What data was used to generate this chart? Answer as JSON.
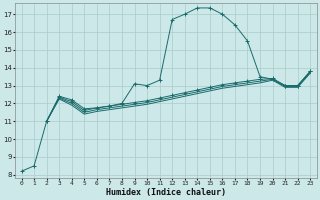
{
  "xlabel": "Humidex (Indice chaleur)",
  "bg_color": "#cce8e8",
  "grid_color": "#aacccc",
  "line_color": "#1a6b6b",
  "xlim": [
    -0.5,
    23.5
  ],
  "ylim": [
    7.8,
    17.6
  ],
  "yticks": [
    8,
    9,
    10,
    11,
    12,
    13,
    14,
    15,
    16,
    17
  ],
  "xticks": [
    0,
    1,
    2,
    3,
    4,
    5,
    6,
    7,
    8,
    9,
    10,
    11,
    12,
    13,
    14,
    15,
    16,
    17,
    18,
    19,
    20,
    21,
    22,
    23
  ],
  "curve1_x": [
    0,
    1,
    2,
    3,
    4,
    5,
    6,
    7,
    8,
    9,
    10,
    11,
    12,
    13,
    14,
    15,
    16,
    17,
    18,
    19,
    20,
    21,
    22,
    23
  ],
  "curve1_y": [
    8.2,
    8.5,
    11.0,
    12.4,
    12.2,
    11.7,
    11.75,
    11.85,
    12.0,
    13.1,
    13.0,
    13.3,
    16.7,
    17.0,
    17.35,
    17.35,
    17.0,
    16.4,
    15.5,
    13.5,
    13.35,
    13.0,
    13.0,
    13.8
  ],
  "curve2_x": [
    2,
    3,
    4,
    5,
    6,
    7,
    8,
    9,
    10,
    11,
    12,
    13,
    14,
    15,
    16,
    17,
    18,
    19,
    20,
    21,
    22,
    23
  ],
  "curve2_y": [
    11.0,
    12.35,
    12.1,
    11.6,
    11.75,
    11.85,
    11.95,
    12.05,
    12.15,
    12.3,
    12.45,
    12.6,
    12.75,
    12.9,
    13.05,
    13.15,
    13.25,
    13.35,
    13.4,
    13.0,
    13.0,
    13.8
  ],
  "curve3_x": [
    2,
    3,
    4,
    5,
    6,
    7,
    8,
    9,
    10,
    11,
    12,
    13,
    14,
    15,
    16,
    17,
    18,
    19,
    20,
    21,
    22,
    23
  ],
  "curve3_y": [
    11.0,
    12.3,
    12.0,
    11.5,
    11.65,
    11.75,
    11.85,
    11.95,
    12.05,
    12.2,
    12.35,
    12.5,
    12.65,
    12.8,
    12.95,
    13.05,
    13.15,
    13.25,
    13.35,
    12.95,
    12.95,
    13.75
  ],
  "curve4_x": [
    2,
    3,
    4,
    5,
    6,
    7,
    8,
    9,
    10,
    11,
    12,
    13,
    14,
    15,
    16,
    17,
    18,
    19,
    20,
    21,
    22,
    23
  ],
  "curve4_y": [
    11.0,
    12.25,
    11.9,
    11.4,
    11.55,
    11.65,
    11.75,
    11.85,
    11.95,
    12.1,
    12.25,
    12.4,
    12.55,
    12.7,
    12.85,
    12.95,
    13.05,
    13.15,
    13.3,
    12.9,
    12.9,
    13.7
  ]
}
